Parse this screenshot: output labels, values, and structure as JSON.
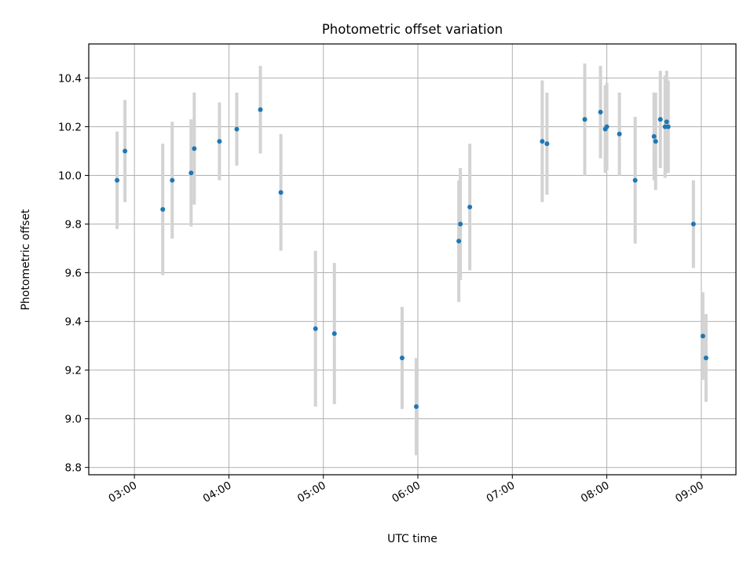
{
  "chart_data": {
    "type": "scatter",
    "title": "Photometric offset variation",
    "xlabel": "UTC time",
    "ylabel": "Photometric offset",
    "x_tick_labels": [
      "03:00",
      "04:00",
      "05:00",
      "06:00",
      "07:00",
      "08:00",
      "09:00"
    ],
    "x_ticks": [
      "03:00",
      "04:00",
      "05:00",
      "06:00",
      "07:00",
      "08:00",
      "09:00"
    ],
    "xlim": [
      "02:31",
      "09:22"
    ],
    "y_ticks": [
      8.8,
      9.0,
      9.2,
      9.4,
      9.6,
      9.8,
      10.0,
      10.2,
      10.4
    ],
    "y_tick_labels": [
      "8.8",
      "9.0",
      "9.2",
      "9.4",
      "9.6",
      "9.8",
      "10.0",
      "10.2",
      "10.4"
    ],
    "ylim": [
      8.77,
      10.54
    ],
    "grid": true,
    "marker_color": "#1f77b4",
    "errorbar_color": "#d3d3d3",
    "points": [
      {
        "t": "02:49",
        "y": 9.98,
        "err": 0.2
      },
      {
        "t": "02:54",
        "y": 10.1,
        "err": 0.21
      },
      {
        "t": "03:18",
        "y": 9.86,
        "err": 0.27
      },
      {
        "t": "03:24",
        "y": 9.98,
        "err": 0.24
      },
      {
        "t": "03:36",
        "y": 10.01,
        "err": 0.22
      },
      {
        "t": "03:38",
        "y": 10.11,
        "err": 0.23
      },
      {
        "t": "03:54",
        "y": 10.14,
        "err": 0.16
      },
      {
        "t": "04:05",
        "y": 10.19,
        "err": 0.15
      },
      {
        "t": "04:20",
        "y": 10.27,
        "err": 0.18
      },
      {
        "t": "04:33",
        "y": 9.93,
        "err": 0.24
      },
      {
        "t": "04:55",
        "y": 9.37,
        "err": 0.32
      },
      {
        "t": "05:07",
        "y": 9.35,
        "err": 0.29
      },
      {
        "t": "05:50",
        "y": 9.25,
        "err": 0.21
      },
      {
        "t": "05:59",
        "y": 9.05,
        "err": 0.2
      },
      {
        "t": "06:26",
        "y": 9.73,
        "err": 0.25
      },
      {
        "t": "06:27",
        "y": 9.8,
        "err": 0.23
      },
      {
        "t": "06:33",
        "y": 9.87,
        "err": 0.26
      },
      {
        "t": "07:19",
        "y": 10.14,
        "err": 0.25
      },
      {
        "t": "07:22",
        "y": 10.13,
        "err": 0.21
      },
      {
        "t": "07:46",
        "y": 10.23,
        "err": 0.23
      },
      {
        "t": "07:56",
        "y": 10.26,
        "err": 0.19
      },
      {
        "t": "07:59",
        "y": 10.19,
        "err": 0.18
      },
      {
        "t": "08:00",
        "y": 10.2,
        "err": 0.18
      },
      {
        "t": "08:08",
        "y": 10.17,
        "err": 0.17
      },
      {
        "t": "08:18",
        "y": 9.98,
        "err": 0.26
      },
      {
        "t": "08:30",
        "y": 10.16,
        "err": 0.18
      },
      {
        "t": "08:31",
        "y": 10.14,
        "err": 0.2
      },
      {
        "t": "08:34",
        "y": 10.23,
        "err": 0.2
      },
      {
        "t": "08:37",
        "y": 10.2,
        "err": 0.21
      },
      {
        "t": "08:38",
        "y": 10.22,
        "err": 0.21
      },
      {
        "t": "08:39",
        "y": 10.2,
        "err": 0.19
      },
      {
        "t": "08:55",
        "y": 9.8,
        "err": 0.18
      },
      {
        "t": "09:01",
        "y": 9.34,
        "err": 0.18
      },
      {
        "t": "09:03",
        "y": 9.25,
        "err": 0.18
      }
    ]
  }
}
